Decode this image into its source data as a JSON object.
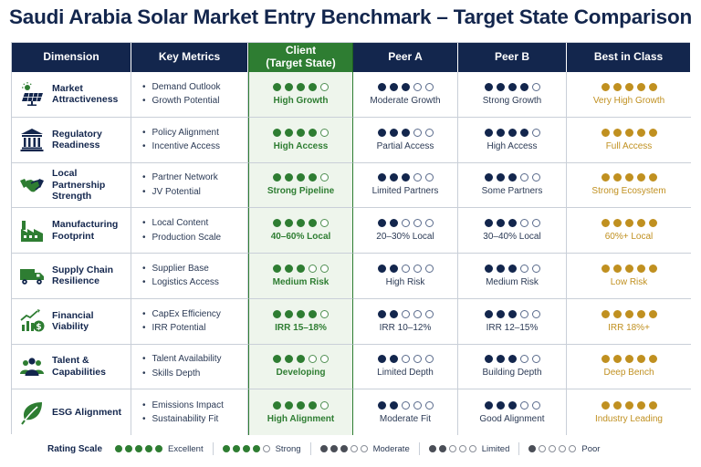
{
  "title": "Saudi Arabia Solar Market Entry Benchmark – Target State Comparison",
  "headers": {
    "dimension": "Dimension",
    "metrics": "Key Metrics",
    "client": "Client\n(Target State)",
    "peer_a": "Peer A",
    "peer_b": "Peer B",
    "best": "Best in Class"
  },
  "colors": {
    "navy": "#13264d",
    "client_green": "#2e7d32",
    "gold": "#c09020",
    "grey": "#6b6f78"
  },
  "chart_data": {
    "type": "table",
    "rating_max": 5,
    "columns": [
      "Client (Target State)",
      "Peer A",
      "Peer B",
      "Best in Class"
    ],
    "rows": [
      {
        "dimension": "Market Attractiveness",
        "icon": "solar-panel-icon",
        "metrics": [
          "Demand Outlook",
          "Growth Potential"
        ],
        "client": {
          "rating": 4,
          "label": "High Growth"
        },
        "peer_a": {
          "rating": 3,
          "label": "Moderate Growth"
        },
        "peer_b": {
          "rating": 4,
          "label": "Strong Growth"
        },
        "best": {
          "rating": 5,
          "label": "Very High Growth"
        }
      },
      {
        "dimension": "Regulatory Readiness",
        "icon": "government-building-icon",
        "metrics": [
          "Policy Alignment",
          "Incentive Access"
        ],
        "client": {
          "rating": 4,
          "label": "High Access"
        },
        "peer_a": {
          "rating": 3,
          "label": "Partial Access"
        },
        "peer_b": {
          "rating": 4,
          "label": "High Access"
        },
        "best": {
          "rating": 5,
          "label": "Full Access"
        }
      },
      {
        "dimension": "Local Partnership Strength",
        "icon": "handshake-icon",
        "metrics": [
          "Partner Network",
          "JV Potential"
        ],
        "client": {
          "rating": 4,
          "label": "Strong Pipeline"
        },
        "peer_a": {
          "rating": 3,
          "label": "Limited Partners"
        },
        "peer_b": {
          "rating": 3,
          "label": "Some Partners"
        },
        "best": {
          "rating": 5,
          "label": "Strong Ecosystem"
        }
      },
      {
        "dimension": "Manufacturing Footprint",
        "icon": "factory-icon",
        "metrics": [
          "Local Content",
          "Production Scale"
        ],
        "client": {
          "rating": 4,
          "label": "40–60% Local"
        },
        "peer_a": {
          "rating": 2,
          "label": "20–30% Local"
        },
        "peer_b": {
          "rating": 3,
          "label": "30–40% Local"
        },
        "best": {
          "rating": 5,
          "label": "60%+ Local"
        }
      },
      {
        "dimension": "Supply Chain Resilience",
        "icon": "truck-icon",
        "metrics": [
          "Supplier Base",
          "Logistics Access"
        ],
        "client": {
          "rating": 3,
          "label": "Medium Risk"
        },
        "peer_a": {
          "rating": 2,
          "label": "High Risk"
        },
        "peer_b": {
          "rating": 3,
          "label": "Medium Risk"
        },
        "best": {
          "rating": 5,
          "label": "Low Risk"
        }
      },
      {
        "dimension": "Financial Viability",
        "icon": "finance-chart-icon",
        "metrics": [
          "CapEx Efficiency",
          "IRR Potential"
        ],
        "client": {
          "rating": 4,
          "label": "IRR 15–18%"
        },
        "peer_a": {
          "rating": 2,
          "label": "IRR 10–12%"
        },
        "peer_b": {
          "rating": 3,
          "label": "IRR 12–15%"
        },
        "best": {
          "rating": 5,
          "label": "IRR 18%+"
        }
      },
      {
        "dimension": "Talent & Capabilities",
        "icon": "people-icon",
        "metrics": [
          "Talent Availability",
          "Skills Depth"
        ],
        "client": {
          "rating": 3,
          "label": "Developing"
        },
        "peer_a": {
          "rating": 2,
          "label": "Limited Depth"
        },
        "peer_b": {
          "rating": 3,
          "label": "Building Depth"
        },
        "best": {
          "rating": 5,
          "label": "Deep Bench"
        }
      },
      {
        "dimension": "ESG Alignment",
        "icon": "leaf-icon",
        "metrics": [
          "Emissions Impact",
          "Sustainability Fit"
        ],
        "client": {
          "rating": 4,
          "label": "High Alignment"
        },
        "peer_a": {
          "rating": 2,
          "label": "Moderate Fit"
        },
        "peer_b": {
          "rating": 3,
          "label": "Good Alignment"
        },
        "best": {
          "rating": 5,
          "label": "Industry Leading"
        }
      }
    ]
  },
  "legend": {
    "title": "Rating Scale",
    "items": [
      {
        "rating": 5,
        "label": "Excellent",
        "color": "#2e7d32"
      },
      {
        "rating": 4,
        "label": "Strong",
        "color": "#2e7d32"
      },
      {
        "rating": 3,
        "label": "Moderate",
        "color": "#4a4e57"
      },
      {
        "rating": 2,
        "label": "Limited",
        "color": "#4a4e57"
      },
      {
        "rating": 1,
        "label": "Poor",
        "color": "#4a4e57"
      }
    ]
  }
}
